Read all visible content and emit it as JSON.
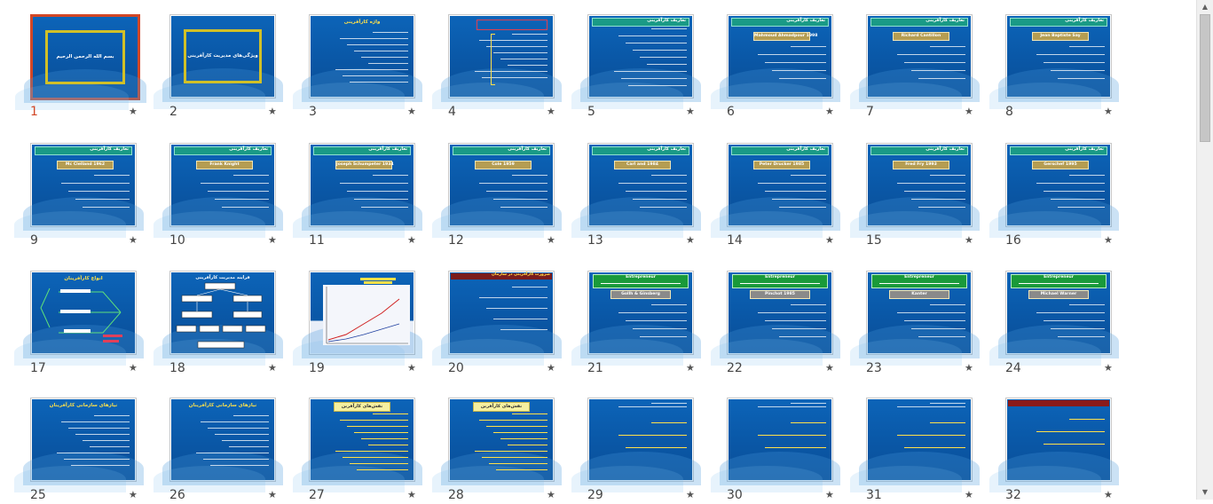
{
  "app": {
    "view": "Slide Sorter"
  },
  "slides": [
    {
      "number": "1",
      "title": "بسم الله الرحمن الرحيم",
      "style": "gold-frame",
      "selected": true
    },
    {
      "number": "2",
      "title": "ویژگی‌های مدیریت کارآفرینی",
      "style": "gold-frame"
    },
    {
      "number": "3",
      "title": "واژه کارآفرینی",
      "style": "yellow-list"
    },
    {
      "number": "4",
      "title": "",
      "style": "dotted-list"
    },
    {
      "number": "5",
      "title": "تعاریف کارآفرینی",
      "style": "teal-text"
    },
    {
      "number": "6",
      "title": "تعاریف کارآفرینی",
      "label": "Mahmoud Ahmadpour 1998",
      "style": "teal-label"
    },
    {
      "number": "7",
      "title": "تعاریف کارآفرینی",
      "label": "Richard Cantillon",
      "style": "teal-label"
    },
    {
      "number": "8",
      "title": "تعاریف کارآفرینی",
      "label": "Jean Baptiste Say",
      "style": "teal-label"
    },
    {
      "number": "9",
      "title": "تعاریف کارآفرینی",
      "label": "Mc Clelland 1962",
      "style": "teal-label"
    },
    {
      "number": "10",
      "title": "تعاریف کارآفرینی",
      "label": "Frank Knight",
      "style": "teal-label"
    },
    {
      "number": "11",
      "title": "تعاریف کارآفرینی",
      "label": "Joseph Schumpeter 1934",
      "style": "teal-label"
    },
    {
      "number": "12",
      "title": "تعاریف کارآفرینی",
      "label": "Cole 1959",
      "style": "teal-label"
    },
    {
      "number": "13",
      "title": "تعاریف کارآفرینی",
      "label": "Carl and 1984",
      "style": "teal-label"
    },
    {
      "number": "14",
      "title": "تعاریف کارآفرینی",
      "label": "Peter Drucker 1985",
      "style": "teal-label"
    },
    {
      "number": "15",
      "title": "تعاریف کارآفرینی",
      "label": "Fred Fry 1993",
      "style": "teal-label"
    },
    {
      "number": "16",
      "title": "تعاریف کارآفرینی",
      "label": "Gerschef 1995",
      "style": "teal-label"
    },
    {
      "number": "17",
      "title": "انواع کارآفرینان",
      "style": "diagram-green"
    },
    {
      "number": "18",
      "title": "فرایند مدیریت کارآفرینی",
      "style": "diagram-white"
    },
    {
      "number": "19",
      "title": "",
      "style": "chart"
    },
    {
      "number": "20",
      "title": "ضرورت کارآفرینی در سازمان",
      "style": "red-bar"
    },
    {
      "number": "21",
      "title": "Entrepreneur",
      "label": "Gollh & Ginsberg",
      "style": "green-bar"
    },
    {
      "number": "22",
      "title": "Entrepreneur",
      "label": "Pinchot 1985",
      "style": "green-bar"
    },
    {
      "number": "23",
      "title": "Entrepreneur",
      "label": "Kanter",
      "style": "green-bar"
    },
    {
      "number": "24",
      "title": "Entrepreneur",
      "label": "Michael Warner",
      "style": "green-bar"
    },
    {
      "number": "25",
      "title": "نیازهای سازمانی کارآفرینان",
      "style": "yellow-list"
    },
    {
      "number": "26",
      "title": "نیازهای سازمانی کارآفرینان",
      "style": "yellow-list"
    },
    {
      "number": "27",
      "title": "نقش‌های کارآفرین",
      "style": "yellow-box"
    },
    {
      "number": "28",
      "title": "نقش‌های کارآفرین",
      "style": "yellow-box"
    },
    {
      "number": "29",
      "title": "",
      "style": "white-text"
    },
    {
      "number": "30",
      "title": "",
      "style": "white-text"
    },
    {
      "number": "31",
      "title": "",
      "style": "white-text"
    },
    {
      "number": "32",
      "title": "",
      "style": "red-top"
    }
  ],
  "scrollbar": {
    "up": "▲",
    "down": "▼"
  }
}
